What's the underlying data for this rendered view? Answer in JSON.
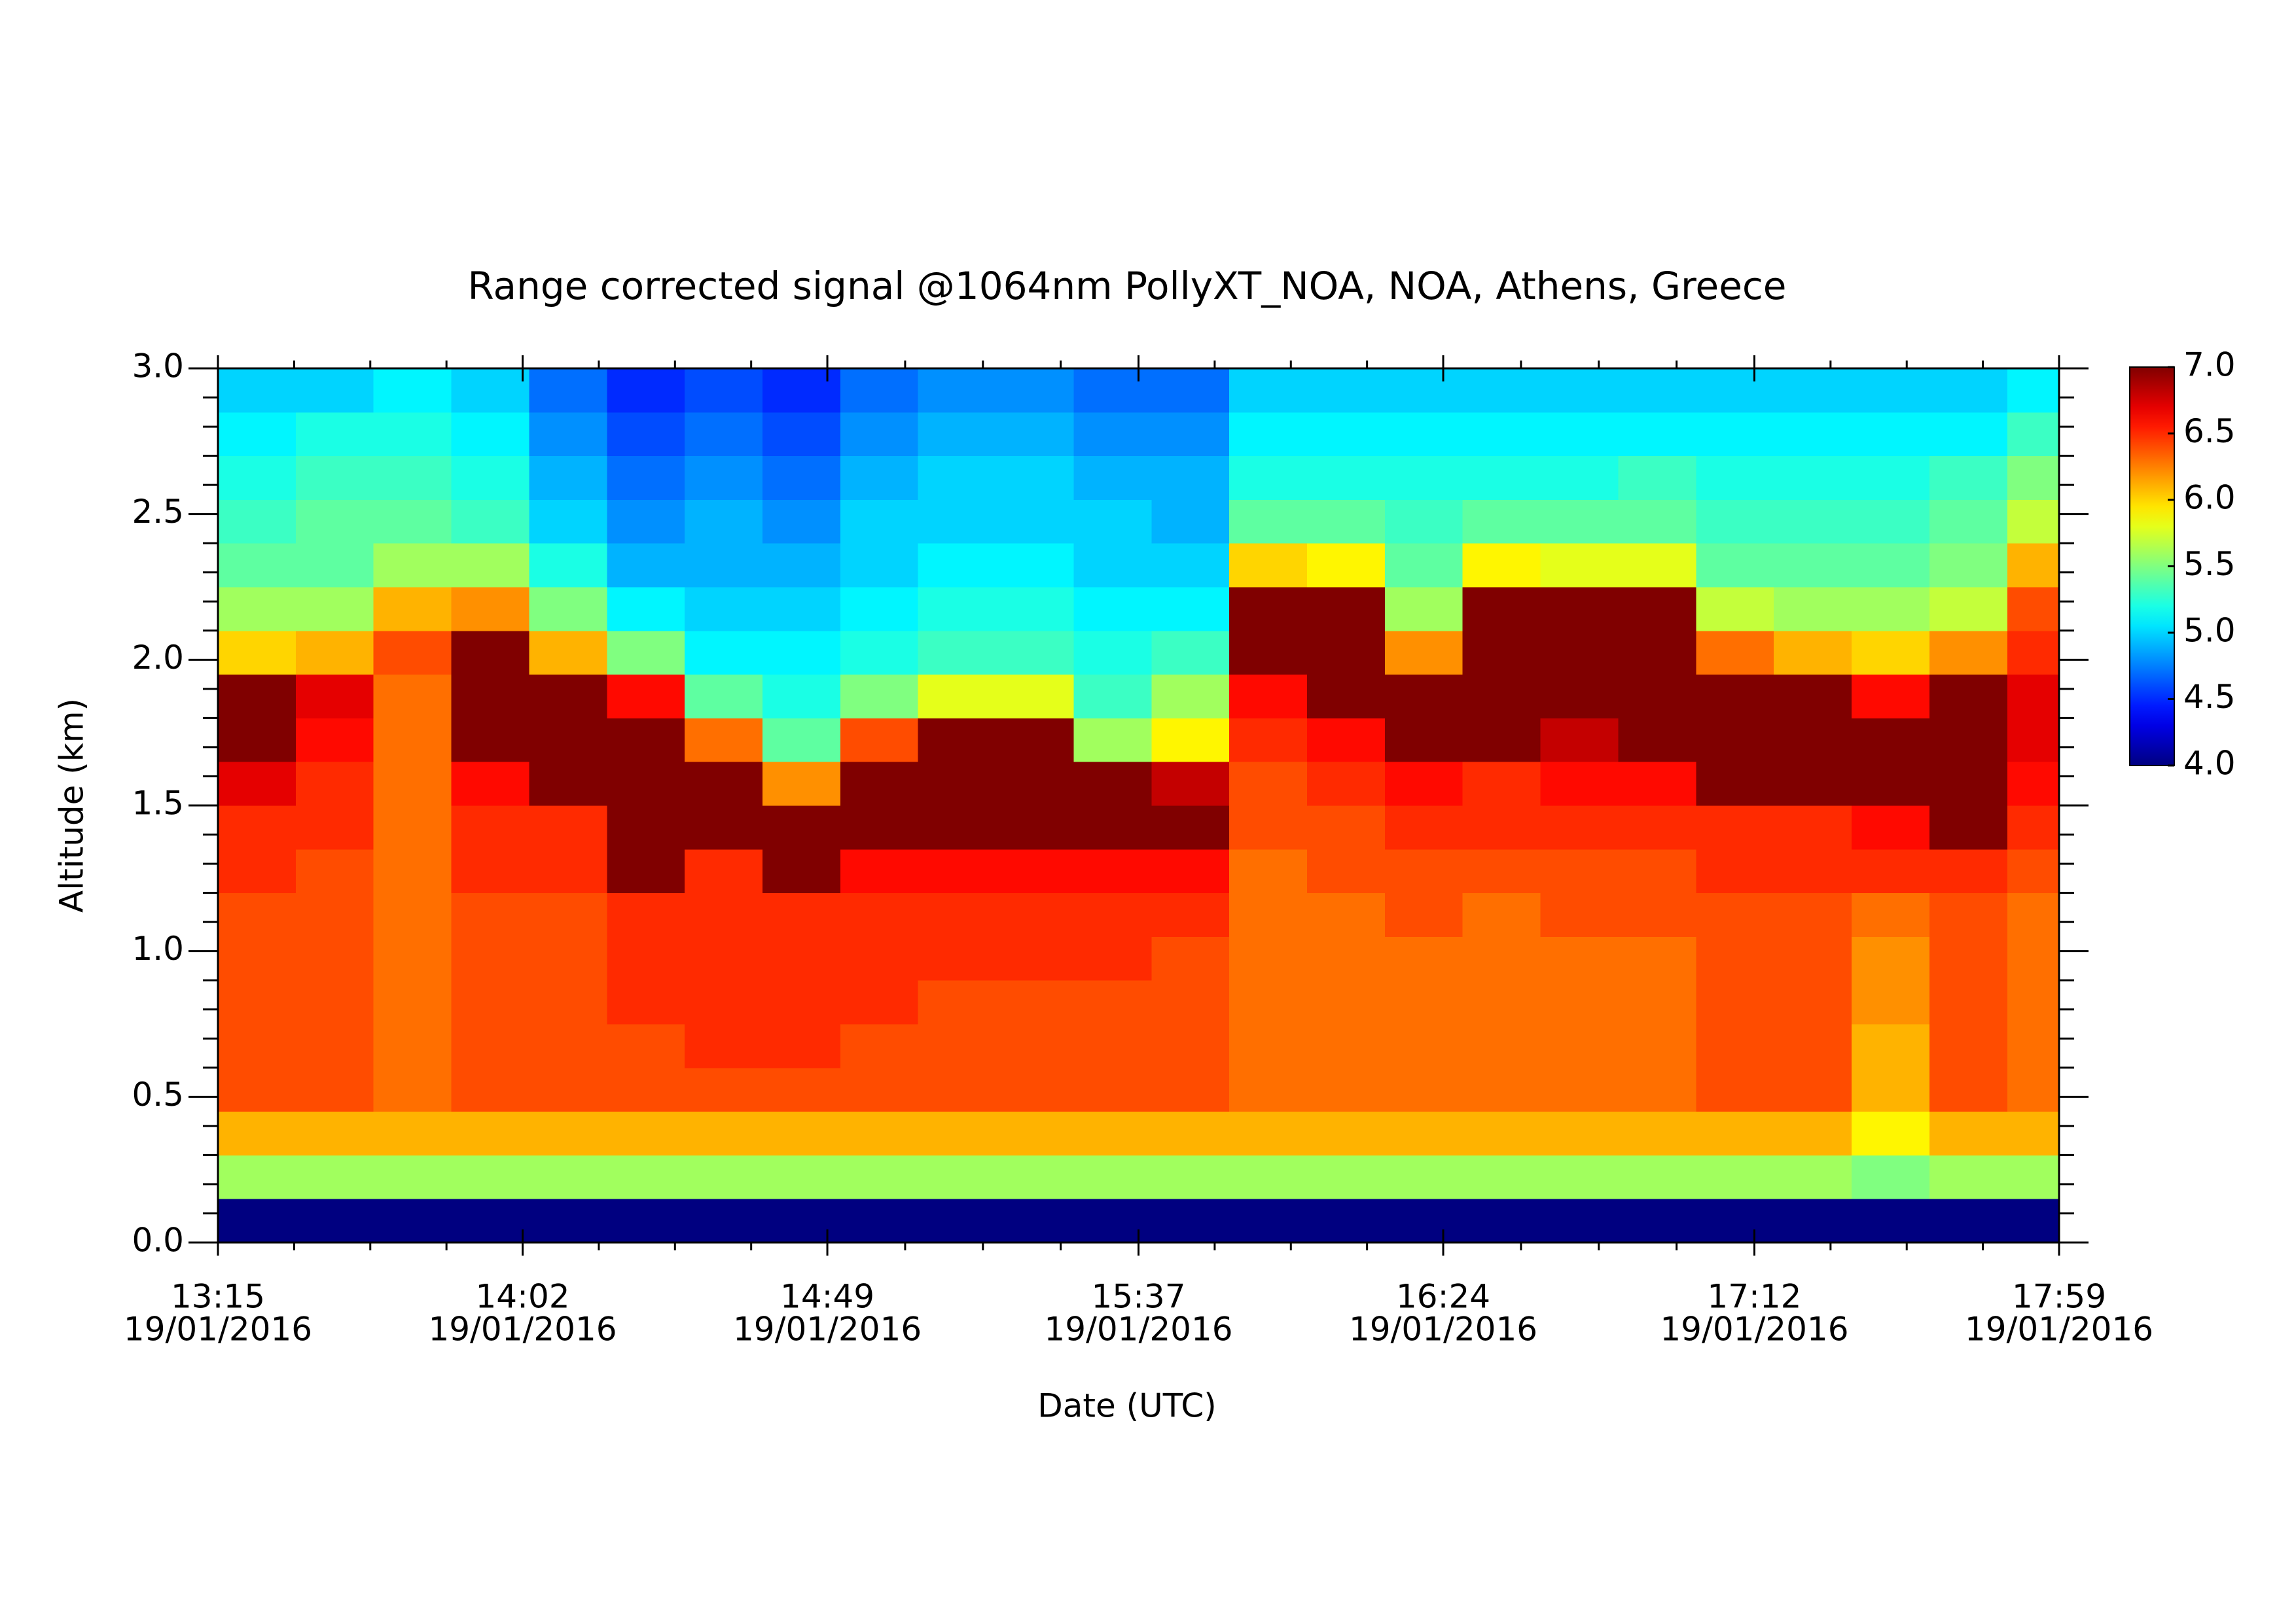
{
  "chart_data": {
    "type": "heatmap",
    "title": "Range corrected signal @1064nm  PollyXT_NOA, NOA, Athens, Greece",
    "xlabel": "Date (UTC)",
    "ylabel": "Altitude (km)",
    "colormap": "jet",
    "xlim": [
      "13:15",
      "17:59"
    ],
    "xticks": [
      {
        "value": "13:15",
        "label": [
          "13:15",
          "19/01/2016"
        ]
      },
      {
        "value": "14:02",
        "label": [
          "14:02",
          "19/01/2016"
        ]
      },
      {
        "value": "14:49",
        "label": [
          "14:49",
          "19/01/2016"
        ]
      },
      {
        "value": "15:37",
        "label": [
          "15:37",
          "19/01/2016"
        ]
      },
      {
        "value": "16:24",
        "label": [
          "16:24",
          "19/01/2016"
        ]
      },
      {
        "value": "17:12",
        "label": [
          "17:12",
          "19/01/2016"
        ]
      },
      {
        "value": "17:59",
        "label": [
          "17:59",
          "19/01/2016"
        ]
      }
    ],
    "ylim": [
      0,
      3
    ],
    "yticks": [
      {
        "value": 0,
        "label": "0.0"
      },
      0.5,
      {
        "value": 1,
        "label": "1.0"
      },
      1.5,
      {
        "value": 2,
        "label": "2.0"
      },
      2.5,
      {
        "value": 3,
        "label": "3.0"
      }
    ],
    "zlim": [
      4,
      7
    ],
    "zticks": [
      {
        "value": 4,
        "label": "4.0"
      },
      4.5,
      {
        "value": 5,
        "label": "5.0"
      },
      5.5,
      {
        "value": 6,
        "label": "6.0"
      },
      6.5,
      {
        "value": 7,
        "label": "7.0"
      }
    ],
    "x": [
      "13:15",
      "13:27",
      "13:39",
      "13:51",
      "14:03",
      "14:15",
      "14:27",
      "14:39",
      "14:51",
      "15:03",
      "15:15",
      "15:27",
      "15:39",
      "15:51",
      "16:03",
      "16:15",
      "16:27",
      "16:39",
      "16:51",
      "17:03",
      "17:15",
      "17:27",
      "17:39",
      "17:51"
    ],
    "y": [
      0,
      0.15,
      0.3,
      0.45,
      0.6,
      0.75,
      0.9,
      1.05,
      1.2,
      1.35,
      1.5,
      1.65,
      1.8,
      1.95,
      2.1,
      2.25,
      2.4,
      2.55,
      2.7,
      2.85
    ],
    "values": [
      [
        4.0,
        5.6,
        6.1,
        6.4,
        6.4,
        6.4,
        6.4,
        6.4,
        6.5,
        6.5,
        6.7,
        7.0,
        7.0,
        6.0,
        5.6,
        5.4,
        5.3,
        5.2,
        5.1,
        5.0
      ],
      [
        4.0,
        5.6,
        6.1,
        6.4,
        6.4,
        6.4,
        6.4,
        6.4,
        6.4,
        6.5,
        6.5,
        6.6,
        6.7,
        6.1,
        5.6,
        5.4,
        5.4,
        5.3,
        5.2,
        5.0
      ],
      [
        4.0,
        5.6,
        6.1,
        6.3,
        6.3,
        6.3,
        6.3,
        6.3,
        6.3,
        6.3,
        6.3,
        6.3,
        6.3,
        6.4,
        6.1,
        5.6,
        5.4,
        5.3,
        5.2,
        5.1
      ],
      [
        4.0,
        5.6,
        6.1,
        6.4,
        6.4,
        6.4,
        6.4,
        6.4,
        6.5,
        6.5,
        6.6,
        7.0,
        7.0,
        7.0,
        6.2,
        5.6,
        5.3,
        5.2,
        5.1,
        5.0
      ],
      [
        4.0,
        5.6,
        6.1,
        6.4,
        6.4,
        6.4,
        6.4,
        6.4,
        6.5,
        6.5,
        7.0,
        7.0,
        7.0,
        6.1,
        5.5,
        5.2,
        5.0,
        4.9,
        4.8,
        4.7
      ],
      [
        4.0,
        5.6,
        6.1,
        6.4,
        6.4,
        6.5,
        6.5,
        6.5,
        7.0,
        7.0,
        7.0,
        7.0,
        6.6,
        5.5,
        5.1,
        4.9,
        4.8,
        4.7,
        4.6,
        4.5
      ],
      [
        4.0,
        5.6,
        6.1,
        6.4,
        6.5,
        6.5,
        6.5,
        6.5,
        6.5,
        7.0,
        7.0,
        6.3,
        5.4,
        5.1,
        5.0,
        4.9,
        4.9,
        4.8,
        4.7,
        4.6
      ],
      [
        4.0,
        5.6,
        6.1,
        6.4,
        6.5,
        6.5,
        6.5,
        6.5,
        7.0,
        7.0,
        6.2,
        5.4,
        5.2,
        5.1,
        5.0,
        4.9,
        4.8,
        4.7,
        4.6,
        4.5
      ],
      [
        4.0,
        5.6,
        6.1,
        6.4,
        6.4,
        6.5,
        6.5,
        6.5,
        6.6,
        7.0,
        7.0,
        6.4,
        5.5,
        5.2,
        5.1,
        5.0,
        5.0,
        4.9,
        4.8,
        4.7
      ],
      [
        4.0,
        5.6,
        6.1,
        6.4,
        6.4,
        6.4,
        6.5,
        6.5,
        6.6,
        7.0,
        7.0,
        7.0,
        5.8,
        5.3,
        5.2,
        5.1,
        5.0,
        5.0,
        4.9,
        4.8
      ],
      [
        4.0,
        5.6,
        6.1,
        6.4,
        6.4,
        6.4,
        6.5,
        6.5,
        6.6,
        7.0,
        7.0,
        7.0,
        5.8,
        5.3,
        5.2,
        5.1,
        5.0,
        5.0,
        4.9,
        4.8
      ],
      [
        4.0,
        5.6,
        6.1,
        6.4,
        6.4,
        6.4,
        6.5,
        6.5,
        6.6,
        7.0,
        7.0,
        5.6,
        5.3,
        5.2,
        5.1,
        5.0,
        5.0,
        4.9,
        4.8,
        4.7
      ],
      [
        4.0,
        5.6,
        6.1,
        6.4,
        6.4,
        6.4,
        6.4,
        6.5,
        6.6,
        7.0,
        6.8,
        5.9,
        5.6,
        5.3,
        5.1,
        5.0,
        4.9,
        4.9,
        4.8,
        4.7
      ],
      [
        4.0,
        5.6,
        6.1,
        6.3,
        6.3,
        6.3,
        6.3,
        6.3,
        6.3,
        6.4,
        6.4,
        6.5,
        6.6,
        7.0,
        7.0,
        6.0,
        5.4,
        5.2,
        5.1,
        5.0
      ],
      [
        4.0,
        5.6,
        6.1,
        6.3,
        6.3,
        6.3,
        6.3,
        6.3,
        6.4,
        6.4,
        6.5,
        6.6,
        7.0,
        7.0,
        7.0,
        5.9,
        5.4,
        5.2,
        5.1,
        5.0
      ],
      [
        4.0,
        5.6,
        6.1,
        6.3,
        6.3,
        6.3,
        6.3,
        6.4,
        6.4,
        6.5,
        6.6,
        7.0,
        7.0,
        6.2,
        5.6,
        5.4,
        5.3,
        5.2,
        5.1,
        5.0
      ],
      [
        4.0,
        5.6,
        6.1,
        6.3,
        6.3,
        6.3,
        6.3,
        6.3,
        6.4,
        6.5,
        6.5,
        7.0,
        7.0,
        7.0,
        7.0,
        5.9,
        5.4,
        5.2,
        5.1,
        5.0
      ],
      [
        4.0,
        5.6,
        6.1,
        6.3,
        6.3,
        6.3,
        6.3,
        6.4,
        6.4,
        6.5,
        6.6,
        6.8,
        7.0,
        7.0,
        7.0,
        5.8,
        5.4,
        5.2,
        5.1,
        5.0
      ],
      [
        4.0,
        5.6,
        6.1,
        6.3,
        6.3,
        6.3,
        6.3,
        6.4,
        6.4,
        6.5,
        6.6,
        7.0,
        7.0,
        7.0,
        7.0,
        5.8,
        5.4,
        5.3,
        5.1,
        5.0
      ],
      [
        4.0,
        5.6,
        6.1,
        6.4,
        6.4,
        6.4,
        6.4,
        6.4,
        6.5,
        6.5,
        7.0,
        7.0,
        7.0,
        6.3,
        5.7,
        5.4,
        5.3,
        5.2,
        5.1,
        5.0
      ],
      [
        4.0,
        5.6,
        6.1,
        6.4,
        6.4,
        6.4,
        6.4,
        6.4,
        6.5,
        6.5,
        7.0,
        7.0,
        7.0,
        6.1,
        5.6,
        5.4,
        5.3,
        5.2,
        5.1,
        5.0
      ],
      [
        4.0,
        5.5,
        5.9,
        6.1,
        6.1,
        6.2,
        6.2,
        6.3,
        6.5,
        6.6,
        7.0,
        7.0,
        6.6,
        6.0,
        5.6,
        5.4,
        5.3,
        5.2,
        5.1,
        5.0
      ],
      [
        4.0,
        5.6,
        6.1,
        6.4,
        6.4,
        6.4,
        6.4,
        6.4,
        6.5,
        7.0,
        7.0,
        7.0,
        7.0,
        6.2,
        5.7,
        5.5,
        5.4,
        5.3,
        5.1,
        5.0
      ],
      [
        4.0,
        5.6,
        6.1,
        6.3,
        6.3,
        6.3,
        6.3,
        6.3,
        6.4,
        6.5,
        6.6,
        6.7,
        6.7,
        6.5,
        6.4,
        6.1,
        5.7,
        5.5,
        5.3,
        5.1
      ]
    ]
  }
}
